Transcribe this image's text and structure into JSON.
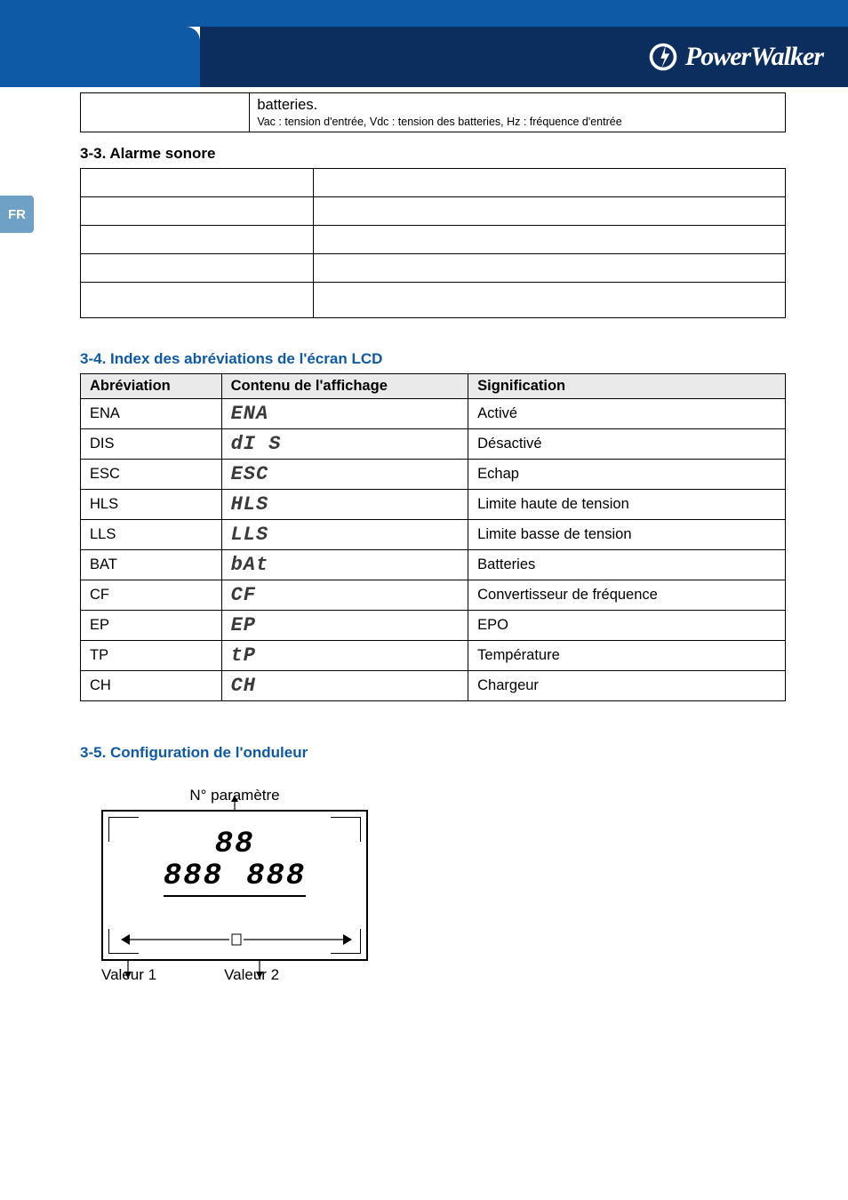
{
  "theme": {
    "brand_blue": "#0f5aa6",
    "header_bg": "#0b2e5e",
    "side_tab_bg": "#6fa1c7",
    "table_header_bg": "#eaeaea",
    "text_color": "#000000",
    "page_bg": "#ffffff",
    "seg_color": "#3a3a3a"
  },
  "logo": {
    "text": "PowerWalker"
  },
  "side_tab": {
    "label": "FR"
  },
  "top_box": {
    "right_line1": "batteries.",
    "right_line2": "Vac : tension d'entrée, Vdc : tension des batteries, Hz : fréquence d'entrée"
  },
  "sections": {
    "s33_title": "3-3. Alarme sonore",
    "s34_title": "3-4. Index des abréviations de l'écran LCD",
    "s35_title": "3-5. Configuration de l'onduleur"
  },
  "abbr_table": {
    "headers": [
      "Abréviation",
      "Contenu de l'affichage",
      "Signification"
    ],
    "rows": [
      {
        "abbr": "ENA",
        "display": "ENA",
        "meaning": "Activé"
      },
      {
        "abbr": "DIS",
        "display": "dI S",
        "meaning": "Désactivé"
      },
      {
        "abbr": "ESC",
        "display": "ESC",
        "meaning": "Echap"
      },
      {
        "abbr": "HLS",
        "display": "HLS",
        "meaning": "Limite haute de tension"
      },
      {
        "abbr": "LLS",
        "display": "LLS",
        "meaning": "Limite basse de tension"
      },
      {
        "abbr": "BAT",
        "display": "bAt",
        "meaning": "Batteries"
      },
      {
        "abbr": "CF",
        "display": "CF",
        "meaning": "Convertisseur de fréquence"
      },
      {
        "abbr": "EP",
        "display": "EP",
        "meaning": "EPO"
      },
      {
        "abbr": "TP",
        "display": "tP",
        "meaning": "Température"
      },
      {
        "abbr": "CH",
        "display": "CH",
        "meaning": "Chargeur"
      }
    ]
  },
  "lcd_config": {
    "label_top": "N° paramètre",
    "seg_top": "88",
    "seg_left": "888",
    "seg_right": "888",
    "label_v1": "Valeur 1",
    "label_v2": "Valeur 2"
  }
}
